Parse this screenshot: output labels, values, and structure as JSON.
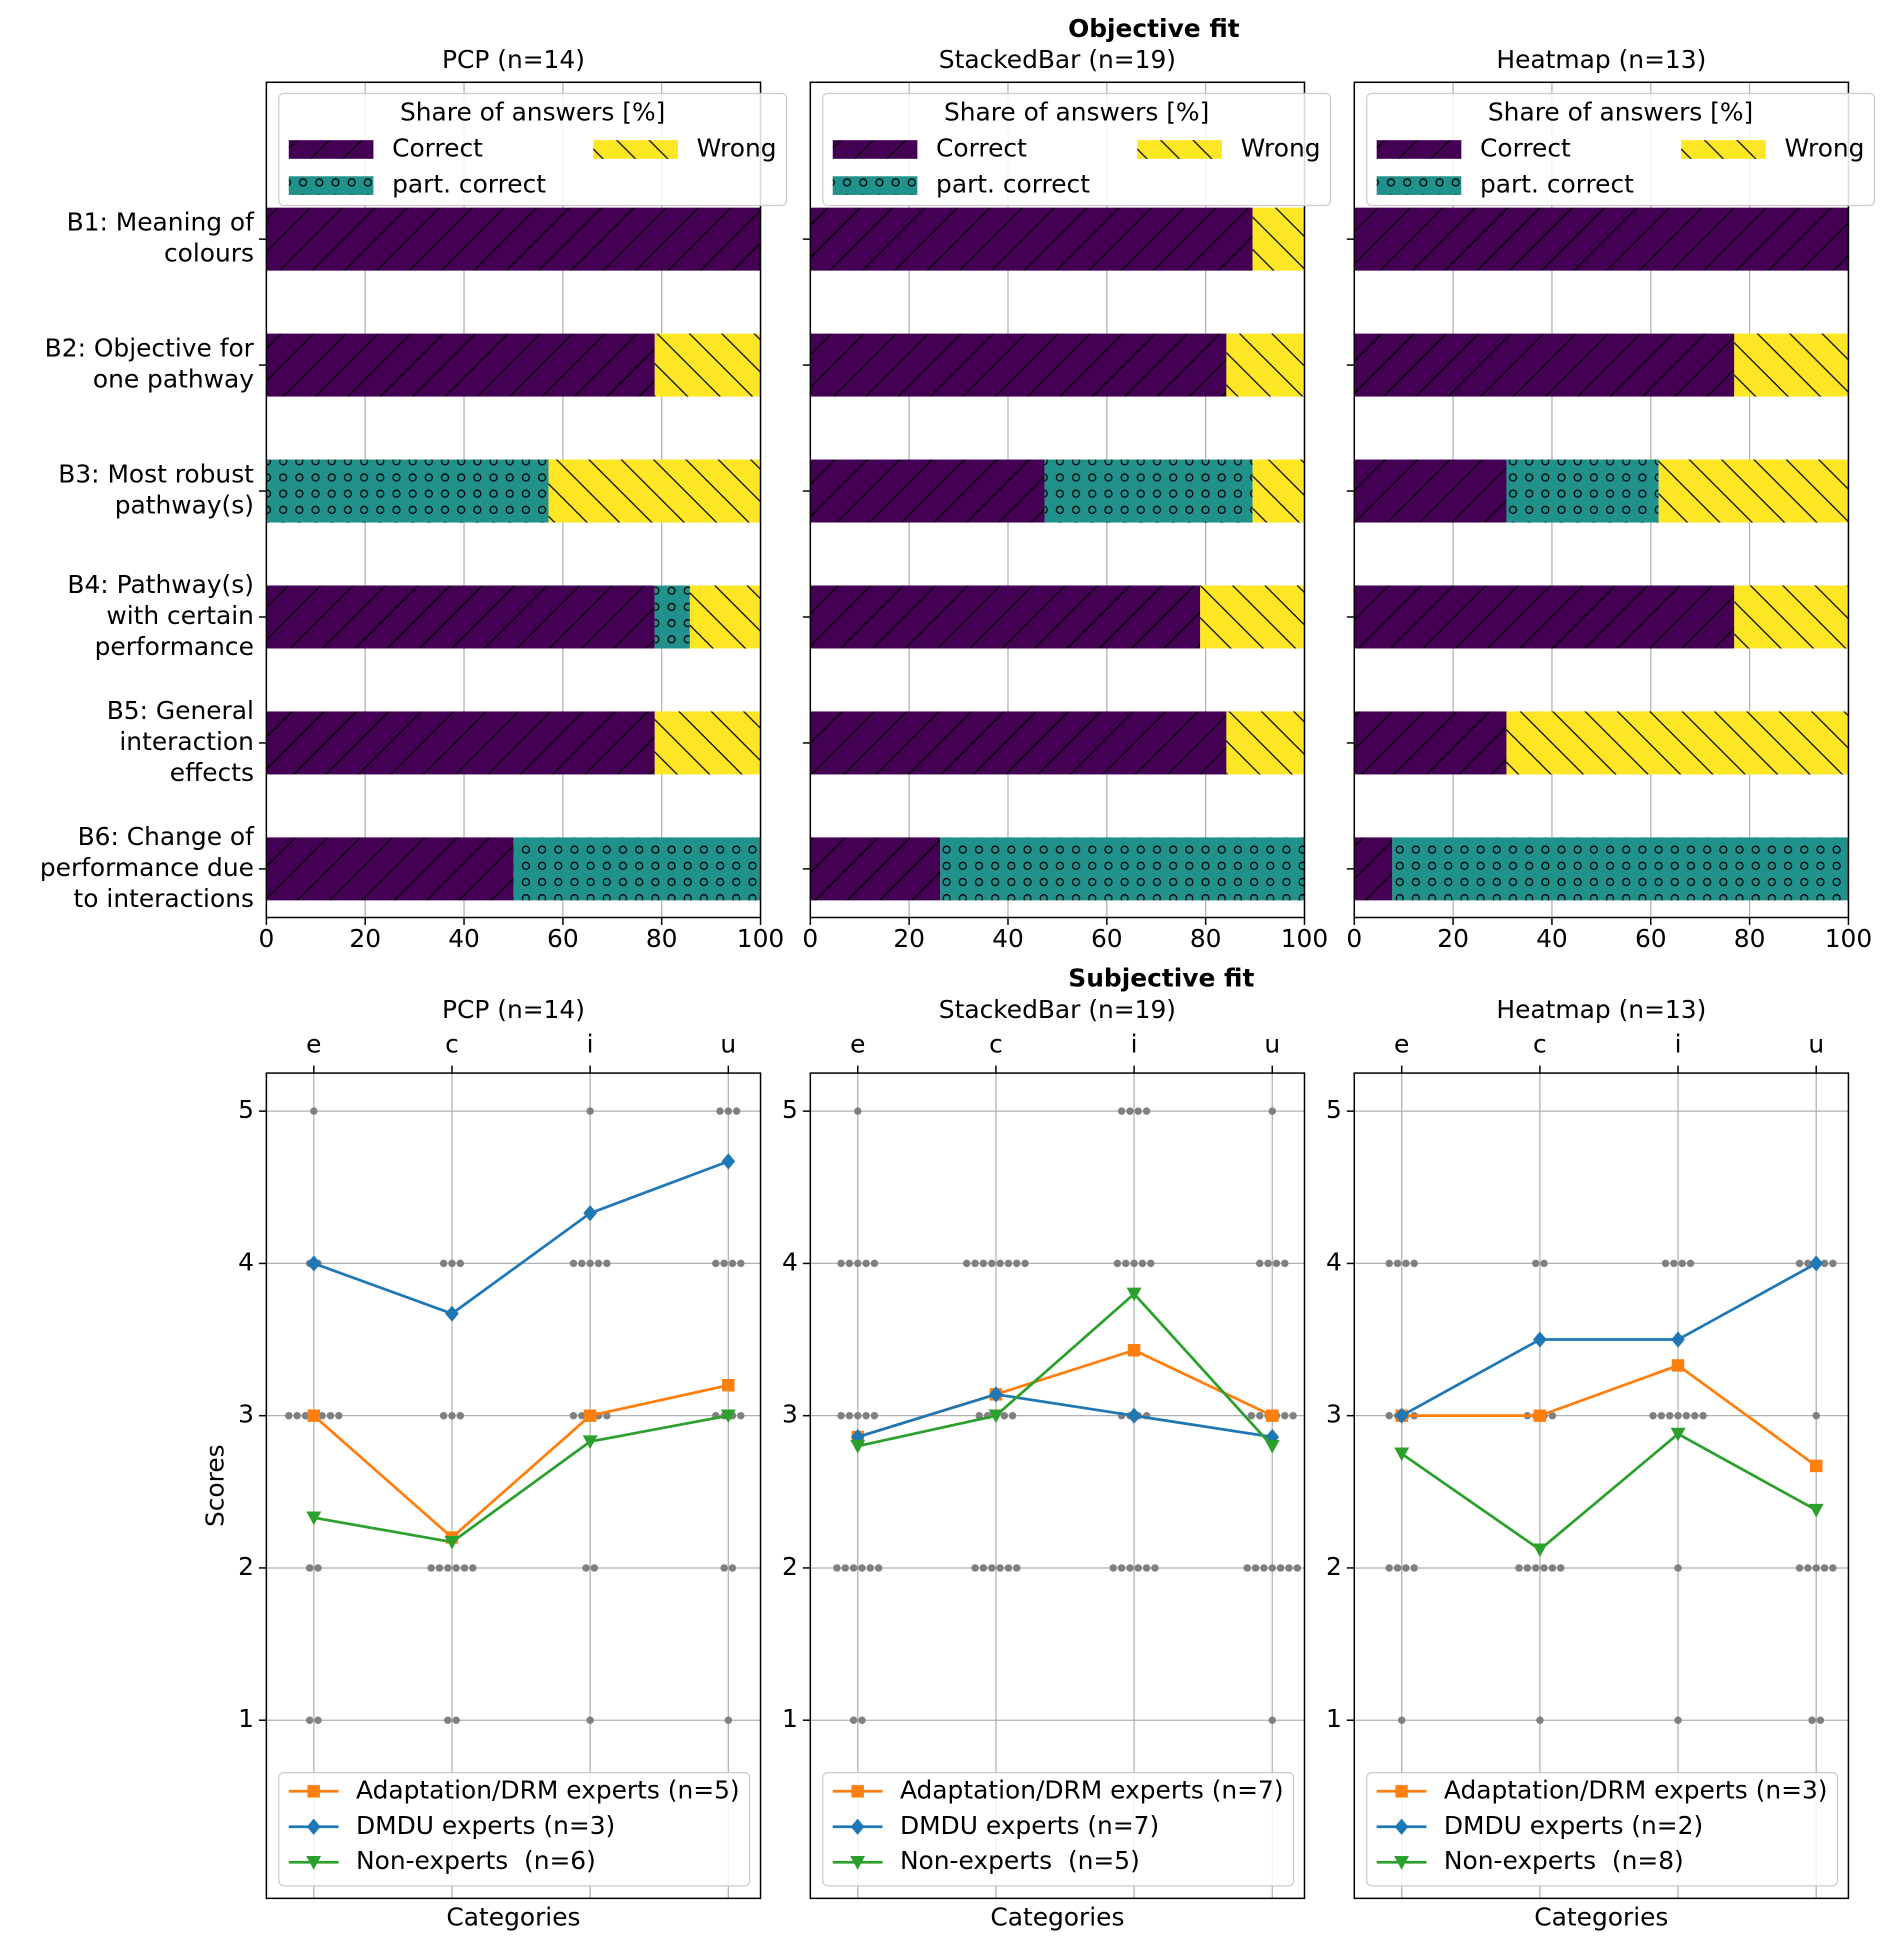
{
  "figure_titles": [
    "Objective fit",
    "Subjective fit"
  ],
  "chart_data": [
    {
      "type": "bar",
      "title": "PCP (n=14)",
      "categories": [
        "B1: Meaning of\ncolours",
        "B2: Objective for\none pathway",
        "B3: Most robust\npathway(s)",
        "B4: Pathway(s)\nwith certain\nperformance",
        "B5: General\ninteraction\neffects",
        "B6: Change of\nperformance due\nto interactions"
      ],
      "series": [
        {
          "name": "Correct",
          "color": "#440154",
          "hatch": "/",
          "values": [
            100,
            78.6,
            0,
            78.6,
            78.6,
            50
          ]
        },
        {
          "name": "part. correct",
          "color": "#21918c",
          "hatch": "o",
          "values": [
            0,
            0,
            57.1,
            7.1,
            0,
            50
          ]
        },
        {
          "name": "Wrong",
          "color": "#fde725",
          "hatch": "\\",
          "values": [
            0,
            21.4,
            42.9,
            14.3,
            21.4,
            0
          ]
        }
      ],
      "xlim": [
        0,
        100
      ],
      "xticks": [
        0,
        20,
        40,
        60,
        80,
        100
      ],
      "grid": true,
      "legend": "upper left",
      "legend_title": "Share of answers [%]",
      "legend_columns": 2
    },
    {
      "type": "bar",
      "title": "StackedBar (n=19)",
      "series": [
        {
          "name": "Correct",
          "color": "#440154",
          "hatch": "/",
          "values": [
            89.5,
            84.2,
            47.4,
            78.9,
            84.2,
            26.3
          ]
        },
        {
          "name": "part. correct",
          "color": "#21918c",
          "hatch": "o",
          "values": [
            0,
            0,
            42.1,
            0,
            0,
            73.7
          ]
        },
        {
          "name": "Wrong",
          "color": "#fde725",
          "hatch": "\\",
          "values": [
            10.5,
            15.8,
            10.5,
            21.1,
            15.8,
            0
          ]
        }
      ],
      "xlim": [
        0,
        100
      ],
      "xticks": [
        0,
        20,
        40,
        60,
        80,
        100
      ],
      "grid": true,
      "legend": "upper left",
      "legend_title": "Share of answers [%]",
      "legend_columns": 2
    },
    {
      "type": "bar",
      "title": "Heatmap (n=13)",
      "series": [
        {
          "name": "Correct",
          "color": "#440154",
          "hatch": "/",
          "values": [
            100,
            76.9,
            30.8,
            76.9,
            30.8,
            7.7
          ]
        },
        {
          "name": "part. correct",
          "color": "#21918c",
          "hatch": "o",
          "values": [
            0,
            0,
            30.8,
            0,
            0,
            92.3
          ]
        },
        {
          "name": "Wrong",
          "color": "#fde725",
          "hatch": "\\",
          "values": [
            0,
            23.1,
            38.5,
            23.1,
            69.2,
            0
          ]
        }
      ],
      "xlim": [
        0,
        100
      ],
      "xticks": [
        0,
        20,
        40,
        60,
        80,
        100
      ],
      "grid": true,
      "legend": "upper left",
      "legend_title": "Share of answers [%]",
      "legend_columns": 2
    },
    {
      "type": "line",
      "title": "PCP (n=14)",
      "categories": [
        "e",
        "c",
        "i",
        "u"
      ],
      "ylim": [
        -0.17,
        5.25
      ],
      "yticks": [
        1,
        2,
        3,
        4,
        5
      ],
      "ylabel": "Scores",
      "xlabel": "Categories",
      "grid": true,
      "legend": "lower left",
      "responses": {
        "color": "#808080",
        "scores": [
          1,
          2,
          3,
          4,
          5
        ],
        "counts": [
          [
            2,
            2,
            7,
            2,
            1
          ],
          [
            2,
            6,
            3,
            3,
            0
          ],
          [
            1,
            2,
            5,
            5,
            1
          ],
          [
            1,
            2,
            4,
            4,
            3
          ]
        ]
      },
      "series": [
        {
          "name": "Adaptation/DRM experts (n=5)",
          "color": "#ff7f0e",
          "marker": "s",
          "values": [
            3,
            2.2,
            3,
            3.2
          ]
        },
        {
          "name": "DMDU experts (n=3)",
          "color": "#1f77b4",
          "marker": "D",
          "values": [
            4,
            3.67,
            4.33,
            4.67
          ]
        },
        {
          "name": "Non-experts  (n=6)",
          "color": "#2ca02c",
          "marker": "v",
          "values": [
            2.33,
            2.17,
            2.83,
            3
          ]
        }
      ]
    },
    {
      "type": "line",
      "title": "StackedBar (n=19)",
      "categories": [
        "e",
        "c",
        "i",
        "u"
      ],
      "ylim": [
        -0.17,
        5.25
      ],
      "yticks": [
        1,
        2,
        3,
        4,
        5
      ],
      "xlabel": "Categories",
      "grid": true,
      "legend": "lower left",
      "responses": {
        "color": "#808080",
        "scores": [
          1,
          2,
          3,
          4,
          5
        ],
        "counts": [
          [
            2,
            6,
            5,
            5,
            1
          ],
          [
            0,
            6,
            5,
            8,
            0
          ],
          [
            0,
            6,
            4,
            5,
            4
          ],
          [
            1,
            7,
            6,
            4,
            1
          ]
        ]
      },
      "series": [
        {
          "name": "Adaptation/DRM experts (n=7)",
          "color": "#ff7f0e",
          "marker": "s",
          "values": [
            2.86,
            3.14,
            3.43,
            3
          ]
        },
        {
          "name": "DMDU experts (n=7)",
          "color": "#1f77b4",
          "marker": "D",
          "values": [
            2.86,
            3.14,
            3,
            2.86
          ]
        },
        {
          "name": "Non-experts  (n=5)",
          "color": "#2ca02c",
          "marker": "v",
          "values": [
            2.8,
            3,
            3.8,
            2.8
          ]
        }
      ]
    },
    {
      "type": "line",
      "title": "Heatmap (n=13)",
      "categories": [
        "e",
        "c",
        "i",
        "u"
      ],
      "ylim": [
        -0.17,
        5.25
      ],
      "yticks": [
        1,
        2,
        3,
        4,
        5
      ],
      "xlabel": "Categories",
      "grid": true,
      "legend": "lower left",
      "responses": {
        "color": "#808080",
        "scores": [
          1,
          2,
          3,
          4,
          5
        ],
        "counts": [
          [
            1,
            4,
            4,
            4,
            0
          ],
          [
            1,
            6,
            4,
            2,
            0
          ],
          [
            1,
            1,
            7,
            4,
            0
          ],
          [
            2,
            5,
            1,
            5,
            0
          ]
        ]
      },
      "series": [
        {
          "name": "Adaptation/DRM experts (n=3)",
          "color": "#ff7f0e",
          "marker": "s",
          "values": [
            3,
            3,
            3.33,
            2.67
          ]
        },
        {
          "name": "DMDU experts (n=2)",
          "color": "#1f77b4",
          "marker": "D",
          "values": [
            3,
            3.5,
            3.5,
            4
          ]
        },
        {
          "name": "Non-experts  (n=8)",
          "color": "#2ca02c",
          "marker": "v",
          "values": [
            2.75,
            2.12,
            2.88,
            2.38
          ]
        }
      ]
    }
  ]
}
